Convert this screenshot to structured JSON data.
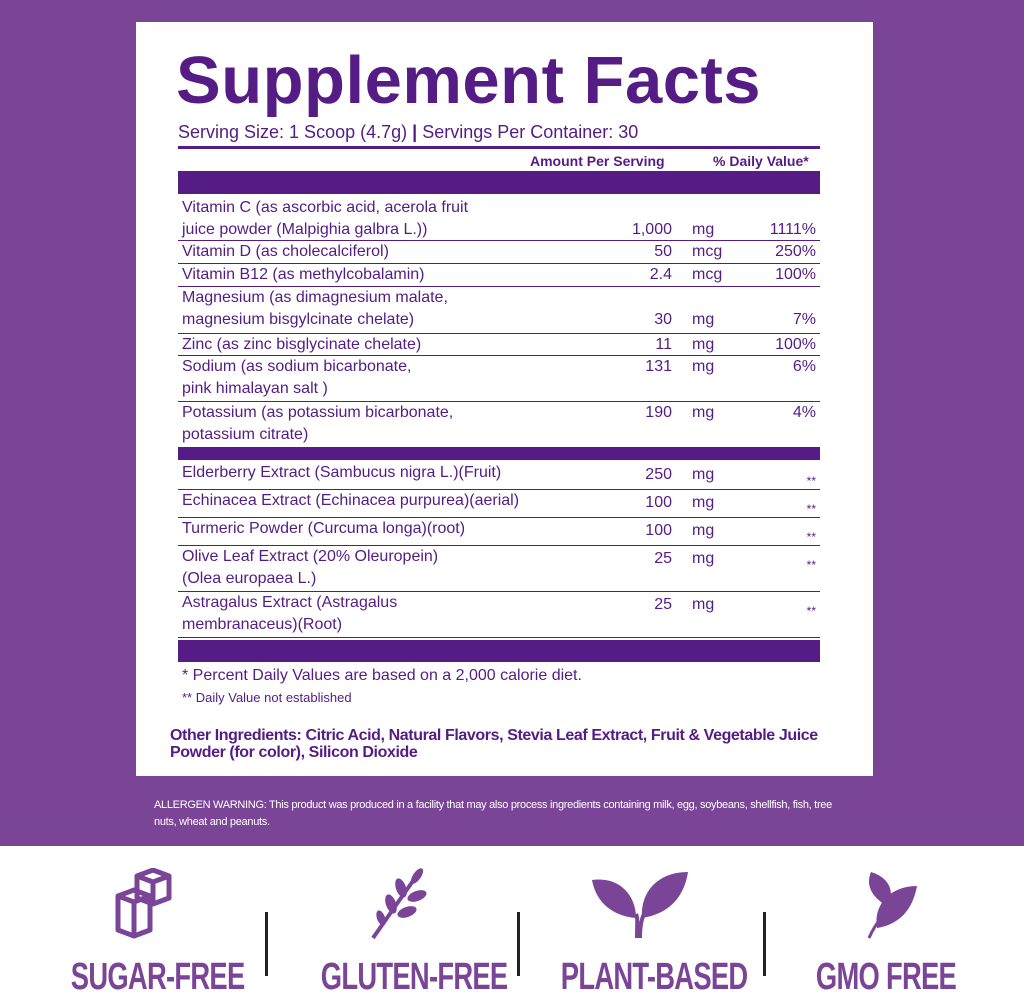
{
  "title": "Supplement Facts",
  "serving_size": "Serving Size: 1 Scoop (4.7g)",
  "servings_per_container": "Servings Per Container: 30",
  "headers": {
    "amount": "Amount Per Serving",
    "dv": "% Daily Value*"
  },
  "group1": [
    {
      "name": "Vitamin C (as ascorbic acid, acerola fruit",
      "name2": "juice powder (Malpighia galbra L.))",
      "amount": "1,000",
      "unit": "mg",
      "dv": "1111%"
    },
    {
      "name": "Vitamin D (as cholecalciferol)",
      "amount": "50",
      "unit": "mcg",
      "dv": "250%"
    },
    {
      "name": "Vitamin B12 (as methylcobalamin)",
      "amount": "2.4",
      "unit": "mcg",
      "dv": "100%"
    },
    {
      "name": "Magnesium (as dimagnesium malate,",
      "name2": "magnesium bisgylcinate chelate)",
      "amount": "30",
      "unit": "mg",
      "dv": "7%"
    },
    {
      "name": "Zinc (as zinc bisglycinate chelate)",
      "amount": "11",
      "unit": "mg",
      "dv": "100%"
    },
    {
      "name": "Sodium (as sodium bicarbonate,",
      "name2": "pink himalayan salt )",
      "amount": "131",
      "unit": "mg",
      "dv": "6%"
    },
    {
      "name": "Potassium (as potassium bicarbonate,",
      "name2": "potassium citrate)",
      "amount": "190",
      "unit": "mg",
      "dv": "4%"
    }
  ],
  "group2": [
    {
      "name": "Elderberry Extract (Sambucus nigra L.)(Fruit)",
      "amount": "250",
      "unit": "mg",
      "dv": "**"
    },
    {
      "name": "Echinacea Extract (Echinacea purpurea)(aerial)",
      "amount": "100",
      "unit": "mg",
      "dv": "**"
    },
    {
      "name": "Turmeric Powder (Curcuma longa)(root)",
      "amount": "100",
      "unit": "mg",
      "dv": "**"
    },
    {
      "name": "Olive Leaf Extract (20% Oleuropein)",
      "name2": "(Olea europaea L.)",
      "amount": "25",
      "unit": "mg",
      "dv": "**"
    },
    {
      "name": "Astragalus Extract (Astragalus",
      "name2": "membranaceus)(Root)",
      "amount": "25",
      "unit": "mg",
      "dv": "**"
    }
  ],
  "footnote1": "* Percent Daily Values are based on a 2,000 calorie diet.",
  "footnote2": "** Daily Value not established",
  "other_ingredients": "Other Ingredients: Citric Acid, Natural Flavors, Stevia Leaf Extract, Fruit & Vegetable Juice Powder (for color), Silicon Dioxide",
  "allergen_warning": "ALLERGEN WARNING: This product was produced in a facility that may also process ingredients containing milk, egg, soybeans, shellfish, fish, tree nuts, wheat and peanuts.",
  "badges": [
    {
      "label": "SUGAR-FREE",
      "icon": "sugar-cubes-icon"
    },
    {
      "label": "GLUTEN-FREE",
      "icon": "wheat-icon"
    },
    {
      "label": "PLANT-BASED",
      "icon": "sprout-icon"
    },
    {
      "label": "GMO FREE",
      "icon": "leaf-icon"
    }
  ],
  "colors": {
    "background": "#7b4597",
    "text": "#541c84"
  }
}
